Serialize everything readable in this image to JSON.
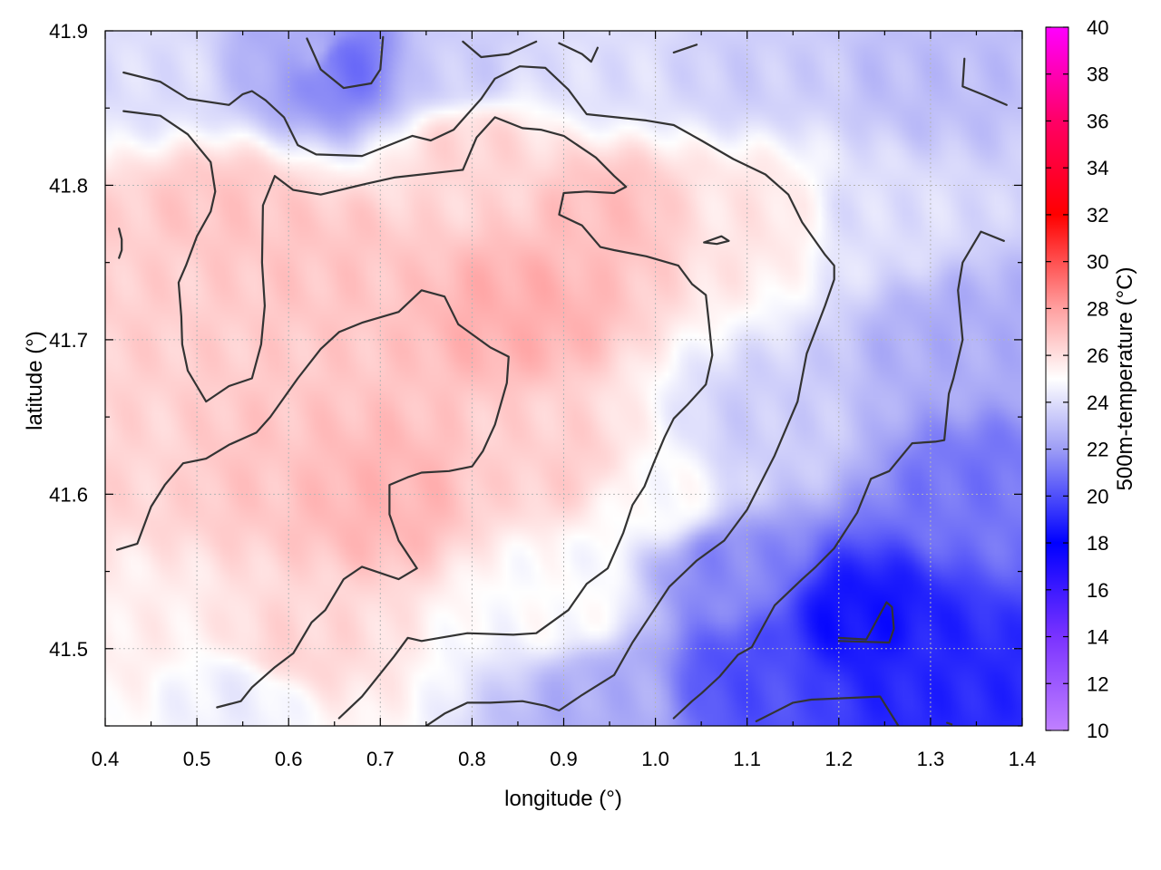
{
  "chart_data": {
    "type": "heatmap",
    "title": "",
    "xlabel": "longitude (°)",
    "ylabel": "latitude (°)",
    "colorbar_label": "500m-temperature (°C)",
    "xlim": [
      0.4,
      1.4
    ],
    "ylim": [
      41.45,
      41.9
    ],
    "x_ticks": [
      0.4,
      0.5,
      0.6,
      0.7,
      0.8,
      0.9,
      1.0,
      1.1,
      1.2,
      1.3,
      1.4
    ],
    "x_tick_labels": [
      "0.4",
      "0.5",
      "0.6",
      "0.7",
      "0.8",
      "0.9",
      "1.0",
      "1.1",
      "1.2",
      "1.3",
      "1.4"
    ],
    "y_ticks": [
      41.5,
      41.6,
      41.7,
      41.8,
      41.9
    ],
    "y_tick_labels": [
      "41.5",
      "41.6",
      "41.7",
      "41.8",
      "41.9"
    ],
    "colorbar_range": [
      10,
      40
    ],
    "colorbar_ticks": [
      10,
      12,
      14,
      16,
      18,
      20,
      22,
      24,
      26,
      28,
      30,
      32,
      34,
      36,
      38,
      40
    ],
    "colorbar_tick_labels": [
      "10",
      "12",
      "14",
      "16",
      "18",
      "20",
      "22",
      "24",
      "26",
      "28",
      "30",
      "32",
      "34",
      "36",
      "38",
      "40"
    ],
    "colormap": [
      {
        "v": 10,
        "color": "#c080ff"
      },
      {
        "v": 14,
        "color": "#7a33ff"
      },
      {
        "v": 18,
        "color": "#0000ff"
      },
      {
        "v": 22,
        "color": "#9d9df5"
      },
      {
        "v": 25,
        "color": "#ffffff"
      },
      {
        "v": 28,
        "color": "#ffa0a0"
      },
      {
        "v": 32,
        "color": "#ff0000"
      },
      {
        "v": 36,
        "color": "#ff0066"
      },
      {
        "v": 40,
        "color": "#ff00ff"
      }
    ],
    "grid": true,
    "field_anchors": [
      {
        "lon": 0.45,
        "lat": 41.88,
        "t": 24.0
      },
      {
        "lon": 0.62,
        "lat": 41.89,
        "t": 22.5
      },
      {
        "lon": 0.66,
        "lat": 41.88,
        "t": 21.0
      },
      {
        "lon": 0.78,
        "lat": 41.88,
        "t": 23.5
      },
      {
        "lon": 0.95,
        "lat": 41.88,
        "t": 24.0
      },
      {
        "lon": 1.1,
        "lat": 41.88,
        "t": 23.5
      },
      {
        "lon": 1.3,
        "lat": 41.87,
        "t": 23.0
      },
      {
        "lon": 1.25,
        "lat": 41.78,
        "t": 24.0
      },
      {
        "lon": 1.33,
        "lat": 41.7,
        "t": 22.5
      },
      {
        "lon": 1.35,
        "lat": 41.6,
        "t": 21.0
      },
      {
        "lon": 1.22,
        "lat": 41.52,
        "t": 18.5
      },
      {
        "lon": 1.3,
        "lat": 41.48,
        "t": 19.0
      },
      {
        "lon": 1.1,
        "lat": 41.48,
        "t": 20.0
      },
      {
        "lon": 1.08,
        "lat": 41.55,
        "t": 21.5
      },
      {
        "lon": 1.12,
        "lat": 41.64,
        "t": 23.5
      },
      {
        "lon": 0.95,
        "lat": 41.47,
        "t": 22.5
      },
      {
        "lon": 0.9,
        "lat": 41.53,
        "t": 25.0
      },
      {
        "lon": 1.0,
        "lat": 41.6,
        "t": 25.0
      },
      {
        "lon": 0.55,
        "lat": 41.47,
        "t": 24.5
      },
      {
        "lon": 0.43,
        "lat": 41.52,
        "t": 25.5
      },
      {
        "lon": 0.6,
        "lat": 41.5,
        "t": 26.3
      },
      {
        "lon": 0.7,
        "lat": 41.6,
        "t": 27.3
      },
      {
        "lon": 0.55,
        "lat": 41.62,
        "t": 26.8
      },
      {
        "lon": 0.45,
        "lat": 41.62,
        "t": 26.3
      },
      {
        "lon": 0.45,
        "lat": 41.74,
        "t": 26.5
      },
      {
        "lon": 0.53,
        "lat": 41.78,
        "t": 26.8
      },
      {
        "lon": 0.65,
        "lat": 41.75,
        "t": 26.8
      },
      {
        "lon": 0.85,
        "lat": 41.72,
        "t": 27.5
      },
      {
        "lon": 0.95,
        "lat": 41.78,
        "t": 27.0
      },
      {
        "lon": 1.1,
        "lat": 41.78,
        "t": 25.8
      },
      {
        "lon": 0.9,
        "lat": 41.62,
        "t": 26.5
      },
      {
        "lon": 0.8,
        "lat": 41.82,
        "t": 26.3
      }
    ],
    "contours": [
      [
        [
          0.42,
          41.873
        ],
        [
          0.46,
          41.867
        ],
        [
          0.49,
          41.856
        ],
        [
          0.535,
          41.852
        ],
        [
          0.55,
          41.859
        ],
        [
          0.56,
          41.861
        ],
        [
          0.575,
          41.855
        ],
        [
          0.595,
          41.844
        ],
        [
          0.61,
          41.826
        ],
        [
          0.63,
          41.82
        ],
        [
          0.68,
          41.819
        ],
        [
          0.735,
          41.832
        ],
        [
          0.755,
          41.829
        ],
        [
          0.78,
          41.836
        ],
        [
          0.81,
          41.856
        ],
        [
          0.825,
          41.869
        ],
        [
          0.852,
          41.877
        ],
        [
          0.88,
          41.876
        ],
        [
          0.905,
          41.862
        ],
        [
          0.925,
          41.846
        ],
        [
          0.99,
          41.842
        ],
        [
          1.02,
          41.839
        ],
        [
          1.05,
          41.829
        ],
        [
          1.085,
          41.817
        ],
        [
          1.12,
          41.807
        ],
        [
          1.145,
          41.794
        ],
        [
          1.16,
          41.776
        ],
        [
          1.185,
          41.755
        ],
        [
          1.195,
          41.748
        ],
        [
          1.195,
          41.739
        ],
        [
          1.185,
          41.722
        ],
        [
          1.165,
          41.691
        ],
        [
          1.155,
          41.66
        ],
        [
          1.13,
          41.625
        ],
        [
          1.1,
          41.59
        ],
        [
          1.075,
          41.57
        ],
        [
          1.045,
          41.557
        ],
        [
          1.015,
          41.54
        ],
        [
          0.995,
          41.522
        ],
        [
          0.975,
          41.504
        ],
        [
          0.955,
          41.483
        ],
        [
          0.92,
          41.47
        ],
        [
          0.895,
          41.46
        ],
        [
          0.88,
          41.463
        ],
        [
          0.855,
          41.466
        ],
        [
          0.82,
          41.465
        ],
        [
          0.795,
          41.465
        ],
        [
          0.77,
          41.458
        ],
        [
          0.75,
          41.45
        ]
      ],
      [
        [
          0.42,
          41.848
        ],
        [
          0.46,
          41.845
        ],
        [
          0.49,
          41.833
        ],
        [
          0.515,
          41.815
        ],
        [
          0.52,
          41.796
        ],
        [
          0.515,
          41.783
        ],
        [
          0.5,
          41.767
        ],
        [
          0.488,
          41.748
        ],
        [
          0.48,
          41.737
        ],
        [
          0.483,
          41.715
        ],
        [
          0.484,
          41.697
        ],
        [
          0.49,
          41.68
        ],
        [
          0.5,
          41.67
        ],
        [
          0.51,
          41.66
        ],
        [
          0.535,
          41.67
        ],
        [
          0.56,
          41.675
        ],
        [
          0.57,
          41.697
        ],
        [
          0.574,
          41.722
        ],
        [
          0.571,
          41.75
        ],
        [
          0.572,
          41.787
        ],
        [
          0.585,
          41.806
        ],
        [
          0.605,
          41.797
        ],
        [
          0.635,
          41.794
        ],
        [
          0.685,
          41.801
        ],
        [
          0.715,
          41.805
        ],
        [
          0.79,
          41.81
        ],
        [
          0.805,
          41.831
        ],
        [
          0.825,
          41.844
        ],
        [
          0.855,
          41.837
        ],
        [
          0.875,
          41.836
        ],
        [
          0.9,
          41.832
        ],
        [
          0.935,
          41.818
        ],
        [
          0.955,
          41.806
        ],
        [
          0.968,
          41.799
        ],
        [
          0.955,
          41.795
        ],
        [
          0.925,
          41.796
        ],
        [
          0.9,
          41.795
        ],
        [
          0.895,
          41.781
        ],
        [
          0.92,
          41.774
        ],
        [
          0.94,
          41.76
        ],
        [
          0.955,
          41.758
        ],
        [
          0.99,
          41.754
        ],
        [
          1.025,
          41.748
        ],
        [
          1.04,
          41.736
        ],
        [
          1.055,
          41.729
        ],
        [
          1.058,
          41.713
        ],
        [
          1.062,
          41.69
        ],
        [
          1.055,
          41.671
        ],
        [
          1.035,
          41.658
        ],
        [
          1.02,
          41.649
        ],
        [
          1.01,
          41.637
        ],
        [
          0.998,
          41.62
        ],
        [
          0.988,
          41.605
        ],
        [
          0.975,
          41.593
        ],
        [
          0.965,
          41.575
        ],
        [
          0.948,
          41.552
        ],
        [
          0.925,
          41.542
        ],
        [
          0.905,
          41.525
        ],
        [
          0.87,
          41.51
        ],
        [
          0.845,
          41.509
        ],
        [
          0.795,
          41.51
        ],
        [
          0.765,
          41.507
        ],
        [
          0.745,
          41.505
        ],
        [
          0.73,
          41.507
        ],
        [
          0.715,
          41.495
        ],
        [
          0.68,
          41.469
        ],
        [
          0.655,
          41.455
        ]
      ],
      [
        [
          0.413,
          41.564
        ],
        [
          0.435,
          41.568
        ],
        [
          0.45,
          41.592
        ],
        [
          0.465,
          41.606
        ],
        [
          0.485,
          41.62
        ],
        [
          0.51,
          41.623
        ],
        [
          0.535,
          41.632
        ],
        [
          0.565,
          41.64
        ],
        [
          0.58,
          41.65
        ],
        [
          0.61,
          41.675
        ],
        [
          0.635,
          41.694
        ],
        [
          0.655,
          41.705
        ],
        [
          0.68,
          41.711
        ],
        [
          0.72,
          41.718
        ],
        [
          0.745,
          41.732
        ],
        [
          0.77,
          41.728
        ],
        [
          0.785,
          41.71
        ],
        [
          0.82,
          41.695
        ],
        [
          0.84,
          41.689
        ],
        [
          0.838,
          41.672
        ],
        [
          0.825,
          41.645
        ],
        [
          0.812,
          41.628
        ],
        [
          0.8,
          41.618
        ],
        [
          0.775,
          41.615
        ],
        [
          0.745,
          41.614
        ],
        [
          0.73,
          41.611
        ],
        [
          0.71,
          41.606
        ],
        [
          0.71,
          41.587
        ],
        [
          0.72,
          41.57
        ],
        [
          0.74,
          41.552
        ],
        [
          0.72,
          41.545
        ],
        [
          0.68,
          41.553
        ],
        [
          0.66,
          41.545
        ],
        [
          0.64,
          41.525
        ],
        [
          0.625,
          41.517
        ],
        [
          0.605,
          41.497
        ],
        [
          0.585,
          41.488
        ],
        [
          0.56,
          41.475
        ],
        [
          0.548,
          41.466
        ],
        [
          0.522,
          41.462
        ]
      ],
      [
        [
          0.62,
          41.895
        ],
        [
          0.635,
          41.875
        ],
        [
          0.66,
          41.863
        ],
        [
          0.69,
          41.866
        ],
        [
          0.7,
          41.875
        ],
        [
          0.703,
          41.896
        ]
      ],
      [
        [
          0.79,
          41.893
        ],
        [
          0.81,
          41.883
        ],
        [
          0.84,
          41.885
        ],
        [
          0.87,
          41.893
        ]
      ],
      [
        [
          0.895,
          41.892
        ],
        [
          0.92,
          41.885
        ],
        [
          0.93,
          41.88
        ],
        [
          0.937,
          41.889
        ]
      ],
      [
        [
          1.02,
          41.886
        ],
        [
          1.045,
          41.891
        ]
      ],
      [
        [
          1.337,
          41.882
        ],
        [
          1.335,
          41.864
        ],
        [
          1.36,
          41.858
        ],
        [
          1.383,
          41.852
        ]
      ],
      [
        [
          1.38,
          41.764
        ],
        [
          1.355,
          41.77
        ],
        [
          1.335,
          41.75
        ],
        [
          1.33,
          41.732
        ],
        [
          1.335,
          41.7
        ],
        [
          1.325,
          41.675
        ],
        [
          1.32,
          41.665
        ],
        [
          1.315,
          41.635
        ],
        [
          1.305,
          41.634
        ],
        [
          1.28,
          41.633
        ],
        [
          1.255,
          41.615
        ],
        [
          1.235,
          41.61
        ],
        [
          1.22,
          41.588
        ],
        [
          1.195,
          41.565
        ],
        [
          1.175,
          41.553
        ],
        [
          1.16,
          41.545
        ],
        [
          1.13,
          41.528
        ],
        [
          1.105,
          41.501
        ],
        [
          1.09,
          41.496
        ],
        [
          1.07,
          41.482
        ],
        [
          1.05,
          41.471
        ],
        [
          1.04,
          41.466
        ],
        [
          1.02,
          41.455
        ]
      ],
      [
        [
          1.2,
          41.505
        ],
        [
          1.255,
          41.504
        ],
        [
          1.26,
          41.513
        ],
        [
          1.258,
          41.527
        ],
        [
          1.252,
          41.53
        ],
        [
          1.23,
          41.506
        ],
        [
          1.2,
          41.507
        ]
      ],
      [
        [
          1.11,
          41.453
        ],
        [
          1.13,
          41.459
        ],
        [
          1.15,
          41.465
        ],
        [
          1.17,
          41.467
        ],
        [
          1.245,
          41.469
        ],
        [
          1.265,
          41.45
        ]
      ],
      [
        [
          1.053,
          41.763
        ],
        [
          1.072,
          41.767
        ],
        [
          1.08,
          41.764
        ],
        [
          1.067,
          41.762
        ],
        [
          1.053,
          41.763
        ]
      ],
      [
        [
          0.415,
          41.772
        ],
        [
          0.418,
          41.765
        ],
        [
          0.418,
          41.758
        ],
        [
          0.415,
          41.753
        ]
      ],
      [
        [
          1.318,
          41.452
        ],
        [
          1.323,
          41.451
        ]
      ]
    ]
  }
}
